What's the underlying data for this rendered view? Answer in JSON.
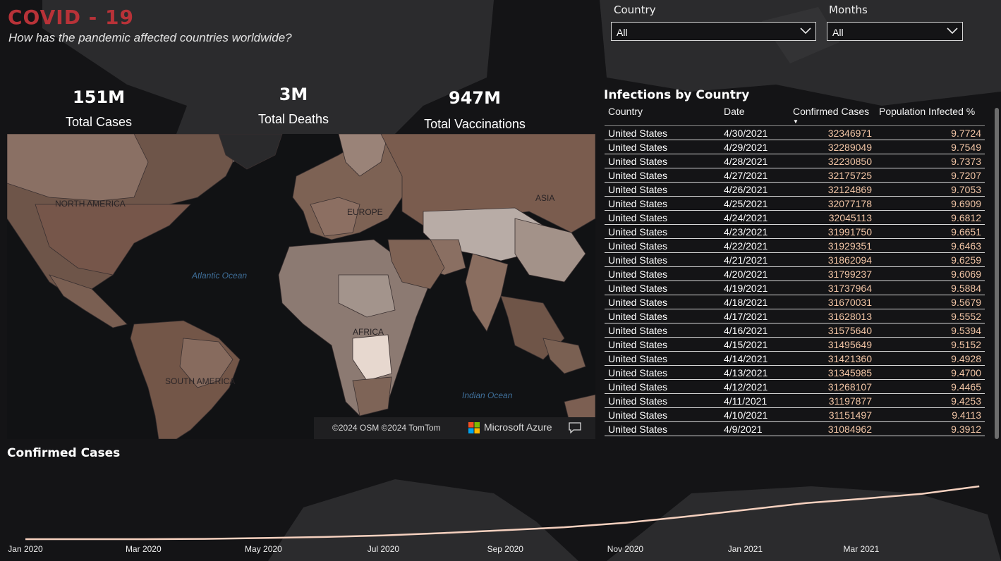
{
  "header": {
    "title": "COVID - 19",
    "subtitle": "How has the pandemic affected countries worldwide?"
  },
  "filters": [
    {
      "label": "Country",
      "value": "All"
    },
    {
      "label": "Months",
      "value": "All"
    }
  ],
  "kpis": [
    {
      "value": "151M",
      "label": "Total Cases"
    },
    {
      "value": "3M",
      "label": "Total Deaths"
    },
    {
      "value": "947M",
      "label": "Total Vaccinations"
    }
  ],
  "map": {
    "labels": {
      "north_america": "NORTH AMERICA",
      "south_america": "SOUTH AMERICA",
      "europe": "EUROPE",
      "asia": "ASIA",
      "africa": "AFRICA",
      "atlantic": "Atlantic Ocean",
      "indian": "Indian Ocean"
    },
    "copyright": "©2024 OSM  ©2024 TomTom",
    "provider": "Microsoft Azure"
  },
  "table": {
    "title": "Infections by Country",
    "columns": [
      "Country",
      "Date",
      "Confirmed Cases",
      "Population Infected %"
    ],
    "rows": [
      [
        "United States",
        "4/30/2021",
        "32346971",
        "9.7724"
      ],
      [
        "United States",
        "4/29/2021",
        "32289049",
        "9.7549"
      ],
      [
        "United States",
        "4/28/2021",
        "32230850",
        "9.7373"
      ],
      [
        "United States",
        "4/27/2021",
        "32175725",
        "9.7207"
      ],
      [
        "United States",
        "4/26/2021",
        "32124869",
        "9.7053"
      ],
      [
        "United States",
        "4/25/2021",
        "32077178",
        "9.6909"
      ],
      [
        "United States",
        "4/24/2021",
        "32045113",
        "9.6812"
      ],
      [
        "United States",
        "4/23/2021",
        "31991750",
        "9.6651"
      ],
      [
        "United States",
        "4/22/2021",
        "31929351",
        "9.6463"
      ],
      [
        "United States",
        "4/21/2021",
        "31862094",
        "9.6259"
      ],
      [
        "United States",
        "4/20/2021",
        "31799237",
        "9.6069"
      ],
      [
        "United States",
        "4/19/2021",
        "31737964",
        "9.5884"
      ],
      [
        "United States",
        "4/18/2021",
        "31670031",
        "9.5679"
      ],
      [
        "United States",
        "4/17/2021",
        "31628013",
        "9.5552"
      ],
      [
        "United States",
        "4/16/2021",
        "31575640",
        "9.5394"
      ],
      [
        "United States",
        "4/15/2021",
        "31495649",
        "9.5152"
      ],
      [
        "United States",
        "4/14/2021",
        "31421360",
        "9.4928"
      ],
      [
        "United States",
        "4/13/2021",
        "31345985",
        "9.4700"
      ],
      [
        "United States",
        "4/12/2021",
        "31268107",
        "9.4465"
      ],
      [
        "United States",
        "4/11/2021",
        "31197877",
        "9.4253"
      ],
      [
        "United States",
        "4/10/2021",
        "31151497",
        "9.4113"
      ],
      [
        "United States",
        "4/9/2021",
        "31084962",
        "9.3912"
      ]
    ]
  },
  "chart": {
    "title": "Confirmed Cases"
  },
  "chart_data": {
    "type": "line",
    "title": "Confirmed Cases",
    "xlabel": "",
    "ylabel": "",
    "x_ticks": [
      "Jan 2020",
      "Mar 2020",
      "May 2020",
      "Jul 2020",
      "Sep 2020",
      "Nov 2020",
      "Jan 2021",
      "Mar 2021"
    ],
    "x": [
      "2020-01-22",
      "2020-03-01",
      "2020-04-01",
      "2020-05-01",
      "2020-06-01",
      "2020-07-01",
      "2020-08-01",
      "2020-09-01",
      "2020-10-01",
      "2020-11-01",
      "2020-12-01",
      "2021-01-01",
      "2021-02-01",
      "2021-03-01",
      "2021-04-01",
      "2021-04-30"
    ],
    "series": [
      {
        "values": [
          0.0006,
          0.09,
          0.9,
          3.3,
          6.3,
          10.6,
          17.7,
          25.6,
          34.0,
          46.8,
          63.9,
          83.6,
          103.1,
          114.9,
          129.6,
          151.0
        ]
      }
    ],
    "y_unit": "millions",
    "grid": false,
    "line_color": "#f6d1bf"
  },
  "colors": {
    "title": "#b83238",
    "accent_line": "#f6d1bf",
    "table_number": "#f3c6a6",
    "background": "#141416"
  }
}
